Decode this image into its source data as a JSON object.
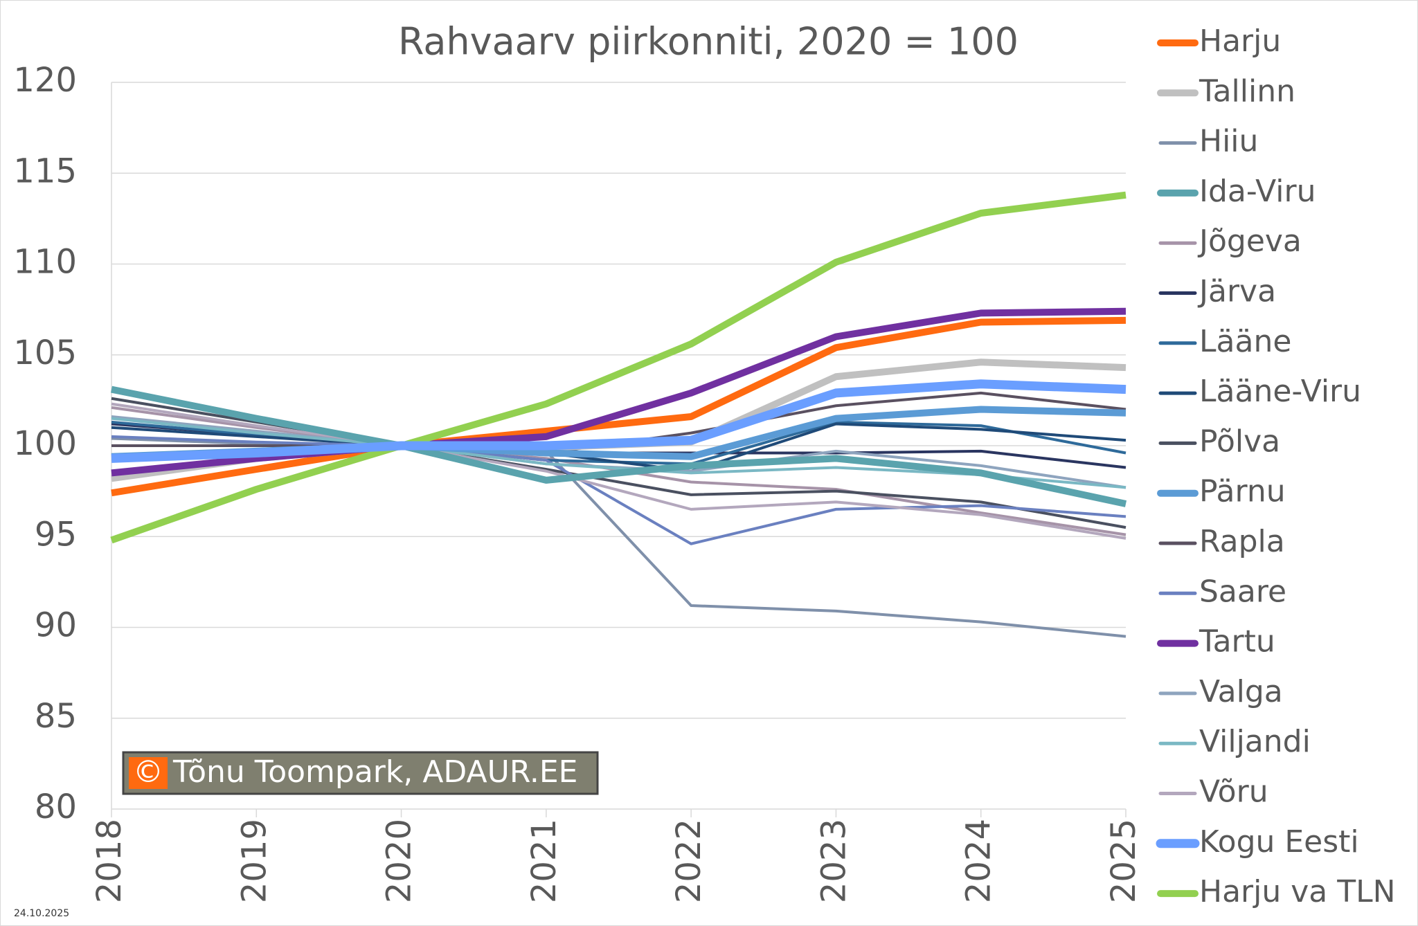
{
  "chart_data": {
    "type": "line",
    "title": "Rahvaarv piirkonniti, 2020 = 100",
    "x": [
      2018,
      2019,
      2020,
      2021,
      2022,
      2023,
      2024,
      2025
    ],
    "xlim": [
      2018,
      2025
    ],
    "xticks": [
      2018,
      2019,
      2020,
      2021,
      2022,
      2023,
      2024,
      2025
    ],
    "ylim": [
      80,
      120
    ],
    "yticks": [
      80,
      85,
      90,
      95,
      100,
      105,
      110,
      115,
      120
    ],
    "grid": true,
    "legend": "right",
    "series": [
      {
        "name": "Harju",
        "color": "#ff6a10",
        "width": 10,
        "values": [
          97.4,
          98.7,
          100,
          100.8,
          101.6,
          105.4,
          106.8,
          106.9
        ]
      },
      {
        "name": "Tallinn",
        "color": "#c0c0c0",
        "width": 10,
        "values": [
          98.2,
          99.3,
          100,
          99.9,
          100.2,
          103.8,
          104.6,
          104.3
        ]
      },
      {
        "name": "Hiiu",
        "color": "#7f90aa",
        "width": 4,
        "values": [
          100.4,
          100.1,
          100,
          99.7,
          91.2,
          90.9,
          90.3,
          89.5
        ]
      },
      {
        "name": "Ida-Viru",
        "color": "#5aa3ad",
        "width": 10,
        "values": [
          103.1,
          101.5,
          100,
          98.1,
          98.9,
          99.3,
          98.5,
          96.8
        ]
      },
      {
        "name": "Jõgeva",
        "color": "#a693a8",
        "width": 4,
        "values": [
          102.1,
          101.0,
          100,
          99.3,
          98.0,
          97.6,
          96.3,
          95.1
        ]
      },
      {
        "name": "Järva",
        "color": "#2a3560",
        "width": 4,
        "values": [
          101.2,
          100.6,
          100,
          99.6,
          99.6,
          99.6,
          99.7,
          98.8
        ]
      },
      {
        "name": "Lääne",
        "color": "#2e6a9a",
        "width": 4,
        "values": [
          101.3,
          100.6,
          100,
          99.2,
          99.0,
          101.3,
          101.1,
          99.6
        ]
      },
      {
        "name": "Lääne-Viru",
        "color": "#1f4a78",
        "width": 4,
        "values": [
          101.0,
          100.5,
          100,
          99.6,
          98.6,
          101.2,
          100.9,
          100.3
        ]
      },
      {
        "name": "Põlva",
        "color": "#4a5060",
        "width": 4,
        "values": [
          102.6,
          101.3,
          100,
          98.7,
          97.3,
          97.5,
          96.9,
          95.5
        ]
      },
      {
        "name": "Pärnu",
        "color": "#5b9bd5",
        "width": 10,
        "values": [
          99.4,
          99.7,
          100,
          99.6,
          99.4,
          101.5,
          102.0,
          101.8
        ]
      },
      {
        "name": "Rapla",
        "color": "#5a5060",
        "width": 4,
        "values": [
          100.0,
          100.0,
          100,
          99.6,
          100.7,
          102.2,
          102.9,
          102.0
        ]
      },
      {
        "name": "Saare",
        "color": "#6a80c0",
        "width": 4,
        "values": [
          100.5,
          100.2,
          100,
          99.2,
          94.6,
          96.5,
          96.7,
          96.1
        ]
      },
      {
        "name": "Tartu",
        "color": "#7030a0",
        "width": 10,
        "values": [
          98.5,
          99.3,
          100,
          100.5,
          102.9,
          106.0,
          107.3,
          107.4
        ]
      },
      {
        "name": "Valga",
        "color": "#8ea4be",
        "width": 4,
        "values": [
          101.6,
          100.8,
          100,
          99.0,
          98.6,
          99.7,
          98.9,
          97.7
        ]
      },
      {
        "name": "Viljandi",
        "color": "#7ab8c4",
        "width": 4,
        "values": [
          101.5,
          100.7,
          100,
          99.0,
          98.5,
          98.8,
          98.4,
          97.7
        ]
      },
      {
        "name": "Võru",
        "color": "#b3a7bd",
        "width": 4,
        "values": [
          102.3,
          101.1,
          100,
          98.6,
          96.5,
          96.9,
          96.2,
          94.9
        ]
      },
      {
        "name": "Kogu Eesti",
        "color": "#6a9eff",
        "width": 13,
        "values": [
          99.3,
          99.6,
          100,
          100.0,
          100.3,
          102.9,
          103.4,
          103.1
        ]
      },
      {
        "name": "Harju va TLN",
        "color": "#92d050",
        "width": 10,
        "values": [
          94.8,
          97.6,
          100,
          102.3,
          105.6,
          110.1,
          112.8,
          113.8
        ]
      }
    ],
    "watermark_symbol": "©",
    "watermark": "Tõnu Toompark, ADAUR.EE",
    "date": "24.10.2025"
  }
}
